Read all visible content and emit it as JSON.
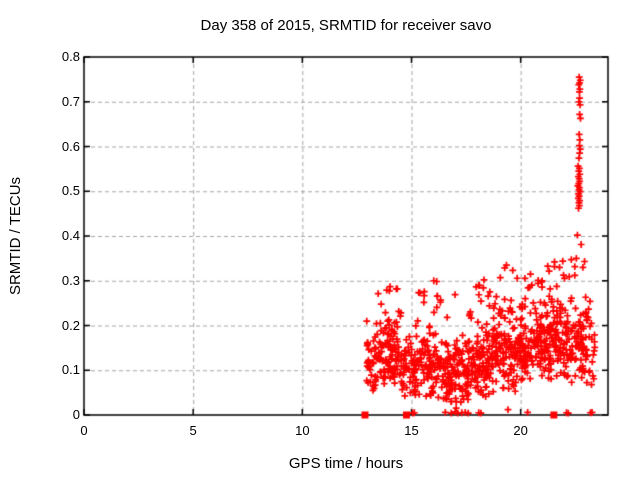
{
  "figure": {
    "background": "#ffffff",
    "text_color": "#000000"
  },
  "chart_data": {
    "type": "scatter",
    "title": "Day 358 of 2015, SRMTID for receiver savo",
    "xlabel": "GPS time / hours",
    "ylabel": "SRMTID / TECUs",
    "xlim": [
      0,
      24
    ],
    "ylim": [
      0,
      0.8
    ],
    "grid": true,
    "legend": "none",
    "marker": "plus",
    "marker_color": "#ff0000",
    "grid_color": "#a6a6a6",
    "border_color": "#000000",
    "xticks": {
      "values": [
        0,
        5,
        10,
        15,
        20
      ],
      "labels": [
        "0",
        "5",
        "10",
        "15",
        "20"
      ]
    },
    "yticks": {
      "values": [
        0,
        0.1,
        0.2,
        0.3,
        0.4,
        0.5,
        0.6,
        0.7,
        0.8
      ],
      "labels": [
        "0",
        "0.1",
        "0.2",
        "0.3",
        "0.4",
        "0.5",
        "0.6",
        "0.7",
        "0.8"
      ]
    },
    "series": [
      {
        "name": "SRMTID",
        "marker": "plus",
        "color": "#ff0000"
      }
    ],
    "seed": 20151358,
    "bands": [
      {
        "x0": 12.95,
        "x1": 13.45,
        "n": 45,
        "yc": 0.115,
        "hw": 0.075,
        "ymin": 0.03,
        "ymax": 0.21
      },
      {
        "x0": 13.45,
        "x1": 14.5,
        "n": 105,
        "yc": 0.14,
        "hw": 0.085,
        "ymin": 0.04,
        "ymax": 0.29
      },
      {
        "x0": 14.5,
        "x1": 15.3,
        "n": 65,
        "yc": 0.105,
        "hw": 0.08,
        "ymin": 0.015,
        "ymax": 0.23
      },
      {
        "x0": 15.3,
        "x1": 16.35,
        "n": 90,
        "yc": 0.12,
        "hw": 0.1,
        "ymin": 0.01,
        "ymax": 0.3
      },
      {
        "x0": 16.35,
        "x1": 17.7,
        "n": 135,
        "yc": 0.09,
        "hw": 0.085,
        "ymin": 0.004,
        "ymax": 0.27
      },
      {
        "x0": 17.7,
        "x1": 18.75,
        "n": 110,
        "yc": 0.115,
        "hw": 0.095,
        "ymin": 0.01,
        "ymax": 0.3
      },
      {
        "x0": 18.75,
        "x1": 19.9,
        "n": 115,
        "yc": 0.14,
        "hw": 0.1,
        "ymin": 0.015,
        "ymax": 0.33
      },
      {
        "x0": 19.9,
        "x1": 21.05,
        "n": 120,
        "yc": 0.155,
        "hw": 0.1,
        "ymin": 0.03,
        "ymax": 0.31
      },
      {
        "x0": 21.05,
        "x1": 22.15,
        "n": 125,
        "yc": 0.17,
        "hw": 0.105,
        "ymin": 0.03,
        "ymax": 0.345
      },
      {
        "x0": 22.15,
        "x1": 23.0,
        "n": 75,
        "yc": 0.17,
        "hw": 0.11,
        "ymin": 0.04,
        "ymax": 0.38
      },
      {
        "x0": 23.0,
        "x1": 23.4,
        "n": 25,
        "yc": 0.14,
        "hw": 0.09,
        "ymin": 0.03,
        "ymax": 0.28
      }
    ],
    "high_cluster_points": [
      [
        22.68,
        0.755
      ],
      [
        22.73,
        0.748
      ],
      [
        22.7,
        0.742
      ],
      [
        22.66,
        0.738
      ],
      [
        22.71,
        0.728
      ],
      [
        22.69,
        0.722
      ],
      [
        22.7,
        0.708
      ],
      [
        22.67,
        0.7
      ],
      [
        22.72,
        0.693
      ],
      [
        22.7,
        0.672
      ],
      [
        22.74,
        0.663
      ],
      [
        22.68,
        0.627
      ],
      [
        22.71,
        0.615
      ],
      [
        22.69,
        0.602
      ],
      [
        22.73,
        0.594
      ],
      [
        22.7,
        0.585
      ],
      [
        22.67,
        0.574
      ],
      [
        22.63,
        0.556
      ],
      [
        22.69,
        0.551
      ],
      [
        22.66,
        0.545
      ],
      [
        22.71,
        0.538
      ],
      [
        22.64,
        0.533
      ],
      [
        22.68,
        0.528
      ],
      [
        22.7,
        0.522
      ],
      [
        22.66,
        0.517
      ],
      [
        22.62,
        0.512
      ],
      [
        22.69,
        0.508
      ],
      [
        22.67,
        0.503
      ],
      [
        22.72,
        0.499
      ],
      [
        22.65,
        0.494
      ],
      [
        22.68,
        0.489
      ],
      [
        22.64,
        0.484
      ],
      [
        22.7,
        0.479
      ],
      [
        22.67,
        0.474
      ],
      [
        22.69,
        0.468
      ],
      [
        22.65,
        0.462
      ],
      [
        22.6,
        0.402
      ],
      [
        22.77,
        0.381
      ]
    ],
    "feature_points": [
      [
        15.05,
        0.004
      ],
      [
        15.13,
        0.005
      ],
      [
        16.55,
        0.006
      ],
      [
        16.82,
        0.004
      ],
      [
        17.0,
        0.007
      ],
      [
        17.12,
        0.004
      ],
      [
        17.3,
        0.005
      ],
      [
        17.46,
        0.006
      ],
      [
        17.6,
        0.004
      ],
      [
        18.08,
        0.005
      ],
      [
        18.18,
        0.004
      ],
      [
        19.42,
        0.012
      ],
      [
        20.32,
        0.006
      ],
      [
        22.1,
        0.005
      ],
      [
        22.18,
        0.004
      ],
      [
        23.2,
        0.005
      ],
      [
        23.27,
        0.006
      ],
      [
        19.35,
        0.335
      ],
      [
        21.55,
        0.342
      ],
      [
        21.78,
        0.33
      ],
      [
        20.45,
        0.315
      ],
      [
        16.02,
        0.3
      ],
      [
        14.02,
        0.287
      ],
      [
        18.32,
        0.302
      ],
      [
        22.32,
        0.347
      ],
      [
        22.48,
        0.312
      ],
      [
        22.55,
        0.35
      ],
      [
        22.85,
        0.33
      ]
    ],
    "zero_square_markers_x": [
      12.87,
      14.77,
      21.52
    ]
  }
}
